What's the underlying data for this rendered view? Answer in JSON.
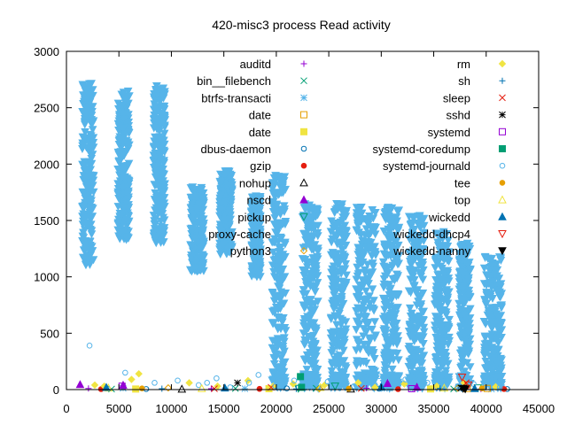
{
  "chart_data": {
    "type": "scatter",
    "title": "420-misc3 process Read activity",
    "xlabel": "",
    "ylabel": "",
    "xlim": [
      0,
      45000
    ],
    "ylim": [
      0,
      3000
    ],
    "x_ticks": [
      "0",
      "5000",
      "10000",
      "15000",
      "20000",
      "25000",
      "30000",
      "35000",
      "40000",
      "45000"
    ],
    "y_ticks": [
      "0",
      "500",
      "1000",
      "1500",
      "2000",
      "2500",
      "3000"
    ],
    "grid": false,
    "legend_placement": "top, two columns",
    "bursts": [
      {
        "x": [
          1500,
          2600
        ],
        "y": [
          1100,
          2720
        ]
      },
      {
        "x": [
          4900,
          6000
        ],
        "y": [
          1330,
          2650
        ]
      },
      {
        "x": [
          8300,
          9400
        ],
        "y": [
          1300,
          2700
        ]
      },
      {
        "x": [
          11800,
          13100
        ],
        "y": [
          1050,
          1800
        ]
      },
      {
        "x": [
          14600,
          15800
        ],
        "y": [
          1200,
          1940
        ]
      },
      {
        "x": [
          17600,
          18500
        ],
        "y": [
          1000,
          1720
        ]
      },
      {
        "x": [
          19600,
          20900
        ],
        "y": [
          10,
          1900
        ]
      },
      {
        "x": [
          22500,
          24000
        ],
        "y": [
          10,
          1650
        ]
      },
      {
        "x": [
          25200,
          26700
        ],
        "y": [
          10,
          1650
        ]
      },
      {
        "x": [
          27600,
          29500
        ],
        "y": [
          10,
          1620
        ]
      },
      {
        "x": [
          30200,
          31700
        ],
        "y": [
          10,
          1630
        ]
      },
      {
        "x": [
          32600,
          34100
        ],
        "y": [
          10,
          1550
        ]
      },
      {
        "x": [
          35100,
          36500
        ],
        "y": [
          10,
          1400
        ]
      },
      {
        "x": [
          37400,
          38500
        ],
        "y": [
          10,
          1300
        ]
      },
      {
        "x": [
          39800,
          41500
        ],
        "y": [
          10,
          1180
        ]
      }
    ],
    "series": [
      {
        "name": "auditd",
        "color": "#9400d3",
        "marker": "plus",
        "points": [
          [
            2100,
            10
          ],
          [
            13800,
            8
          ],
          [
            28600,
            12
          ],
          [
            39500,
            5
          ]
        ]
      },
      {
        "name": "bin__filebench",
        "color": "#009e73",
        "marker": "cross",
        "points": [
          [
            4300,
            5
          ],
          [
            16100,
            10
          ],
          [
            23800,
            12
          ],
          [
            36900,
            6
          ]
        ]
      },
      {
        "name": "btrfs-transacti",
        "color": "#56b4e9",
        "marker": "star",
        "points": [
          [
            5400,
            12
          ],
          [
            17000,
            8
          ],
          [
            30300,
            10
          ],
          [
            40500,
            5
          ]
        ]
      },
      {
        "name": "date",
        "color": "#e69f00",
        "marker": "square-open",
        "points": [
          [
            38200,
            10
          ],
          [
            40100,
            10
          ]
        ]
      },
      {
        "name": "date",
        "color": "#f0e442",
        "marker": "square-filled",
        "points": [
          [
            6600,
            5
          ],
          [
            19300,
            8
          ],
          [
            34700,
            6
          ]
        ]
      },
      {
        "name": "dbus-daemon",
        "color": "#0072b2",
        "marker": "circle-open",
        "points": [
          [
            7600,
            5
          ],
          [
            21000,
            10
          ],
          [
            29800,
            8
          ],
          [
            42000,
            5
          ]
        ]
      },
      {
        "name": "gzip",
        "color": "#e51e10",
        "marker": "circle-filled",
        "points": [
          [
            3300,
            4
          ],
          [
            18400,
            6
          ],
          [
            31600,
            4
          ],
          [
            41700,
            5
          ]
        ]
      },
      {
        "name": "nohup",
        "color": "#000000",
        "marker": "triangle-open",
        "points": [
          [
            11000,
            5
          ],
          [
            27100,
            6
          ]
        ]
      },
      {
        "name": "nscd",
        "color": "#9400d3",
        "marker": "triangle-filled",
        "points": [
          [
            1300,
            45
          ],
          [
            5400,
            40
          ],
          [
            30600,
            55
          ],
          [
            33400,
            22
          ]
        ]
      },
      {
        "name": "pickup",
        "color": "#009e73",
        "marker": "triangle-down-open",
        "points": [
          [
            22100,
            10
          ],
          [
            25600,
            30
          ],
          [
            39200,
            15
          ]
        ]
      },
      {
        "name": "proxy-cache",
        "color": "#56b4e9",
        "marker": "triangle-down-filled",
        "points": [
          [
            2000,
            2500
          ],
          [
            5500,
            2400
          ],
          [
            8900,
            2450
          ],
          [
            12400,
            1400
          ],
          [
            15200,
            1500
          ],
          [
            18000,
            1300
          ],
          [
            20300,
            900
          ],
          [
            23300,
            800
          ],
          [
            26000,
            800
          ],
          [
            28500,
            800
          ],
          [
            31000,
            800
          ],
          [
            33400,
            750
          ],
          [
            35800,
            700
          ],
          [
            38000,
            650
          ],
          [
            40600,
            600
          ]
        ]
      },
      {
        "name": "python3",
        "color": "#e69f00",
        "marker": "diamond-open",
        "points": [
          [
            9700,
            15
          ],
          [
            24100,
            8
          ],
          [
            37300,
            12
          ]
        ]
      },
      {
        "name": "rm",
        "color": "#f0e442",
        "marker": "diamond-filled",
        "points": [
          [
            2700,
            40
          ],
          [
            3600,
            30
          ],
          [
            6200,
            90
          ],
          [
            6900,
            140
          ],
          [
            11700,
            60
          ],
          [
            14400,
            30
          ],
          [
            17300,
            80
          ],
          [
            19700,
            30
          ],
          [
            21600,
            50
          ],
          [
            24600,
            40
          ],
          [
            27800,
            60
          ],
          [
            29400,
            20
          ],
          [
            32200,
            50
          ],
          [
            35300,
            30
          ],
          [
            37900,
            60
          ],
          [
            40900,
            25
          ]
        ]
      },
      {
        "name": "sh",
        "color": "#0072b2",
        "marker": "plus",
        "points": [
          [
            9100,
            8
          ],
          [
            21900,
            6
          ],
          [
            35600,
            10
          ]
        ]
      },
      {
        "name": "sleep",
        "color": "#e51e10",
        "marker": "cross",
        "points": [
          [
            14100,
            8
          ],
          [
            19500,
            20
          ],
          [
            28100,
            10
          ],
          [
            38100,
            60
          ]
        ]
      },
      {
        "name": "sshd",
        "color": "#000000",
        "marker": "star",
        "points": [
          [
            16300,
            60
          ],
          [
            37600,
            15
          ]
        ]
      },
      {
        "name": "systemd",
        "color": "#9400d3",
        "marker": "square-open",
        "points": [
          [
            5300,
            30
          ],
          [
            32900,
            8
          ]
        ]
      },
      {
        "name": "systemd-coredump",
        "color": "#009e73",
        "marker": "square-filled",
        "points": [
          [
            22300,
            115
          ],
          [
            22400,
            20
          ]
        ]
      },
      {
        "name": "systemd-journald",
        "color": "#56b4e9",
        "marker": "circle-open",
        "points": [
          [
            2200,
            390
          ],
          [
            5600,
            150
          ],
          [
            8400,
            60
          ],
          [
            10600,
            80
          ],
          [
            12600,
            40
          ],
          [
            13400,
            60
          ],
          [
            14300,
            100
          ],
          [
            15600,
            20
          ],
          [
            17400,
            60
          ],
          [
            18300,
            130
          ],
          [
            19900,
            30
          ],
          [
            21700,
            80
          ],
          [
            23200,
            60
          ],
          [
            24900,
            70
          ],
          [
            25700,
            320
          ],
          [
            26100,
            200
          ],
          [
            26600,
            60
          ],
          [
            27400,
            30
          ],
          [
            28700,
            90
          ],
          [
            29800,
            120
          ],
          [
            31200,
            40
          ],
          [
            32300,
            90
          ],
          [
            33800,
            40
          ],
          [
            34400,
            60
          ],
          [
            36200,
            40
          ],
          [
            37300,
            30
          ],
          [
            38800,
            50
          ],
          [
            41300,
            20
          ]
        ]
      },
      {
        "name": "tee",
        "color": "#e69f00",
        "marker": "circle-filled",
        "points": [
          [
            7200,
            10
          ],
          [
            26900,
            8
          ],
          [
            39600,
            10
          ]
        ]
      },
      {
        "name": "top",
        "color": "#f0e442",
        "marker": "triangle-open",
        "points": [
          [
            4000,
            15
          ],
          [
            12900,
            10
          ],
          [
            24200,
            20
          ],
          [
            36000,
            15
          ]
        ]
      },
      {
        "name": "wickedd",
        "color": "#0072b2",
        "marker": "triangle-filled",
        "points": [
          [
            3800,
            20
          ],
          [
            15100,
            15
          ],
          [
            30000,
            25
          ],
          [
            38900,
            10
          ]
        ]
      },
      {
        "name": "wickedd-dhcp4",
        "color": "#e51e10",
        "marker": "triangle-down-open",
        "points": [
          [
            37700,
            110
          ],
          [
            38300,
            40
          ]
        ]
      },
      {
        "name": "wickedd-nanny",
        "color": "#000000",
        "marker": "triangle-down-filled",
        "points": [
          [
            37800,
            10
          ],
          [
            38000,
            5
          ]
        ]
      }
    ]
  }
}
